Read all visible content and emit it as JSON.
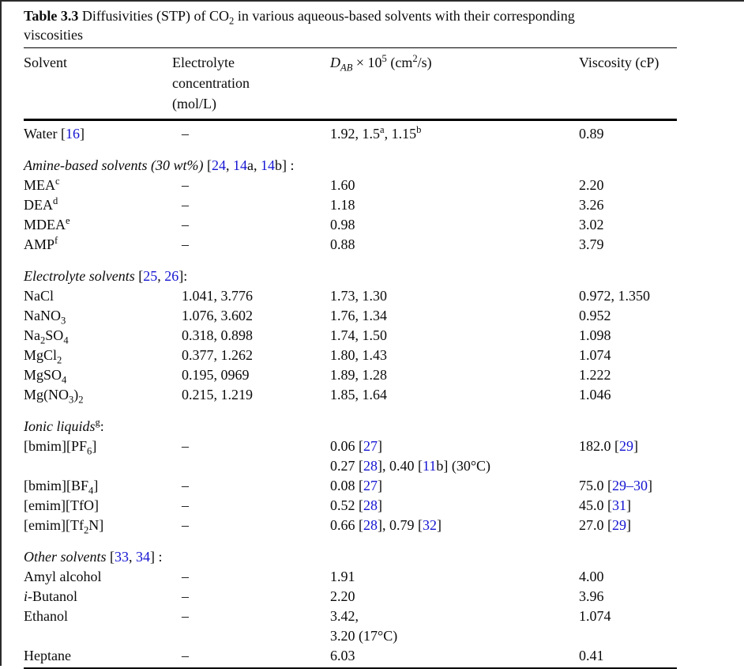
{
  "colors": {
    "link_blue": "#1414d2",
    "text": "#0b0b0b",
    "rule": "#000000",
    "frame": "#2b2b2b"
  },
  "table": {
    "title_segments": [
      {
        "b": "Table 3.3"
      },
      {
        "t": "  Diffusivities (STP) of CO"
      },
      {
        "sub": "2"
      },
      {
        "t": " in various aqueous-based solvents with their corresponding"
      },
      {
        "br": true
      },
      {
        "t": "viscosities"
      }
    ],
    "columns": [
      {
        "name": "solvent",
        "segments": [
          {
            "t": "Solvent"
          }
        ]
      },
      {
        "name": "electrolyte-concentration",
        "segments": [
          {
            "t": "Electrolyte"
          },
          {
            "br": true
          },
          {
            "t": "concentration"
          },
          {
            "br": true
          },
          {
            "t": "(mol/L)"
          }
        ]
      },
      {
        "name": "diffusivity",
        "segments": [
          {
            "i": "D"
          },
          {
            "isub": "AB"
          },
          {
            "t": " × 10"
          },
          {
            "sup": "5"
          },
          {
            "t": " (cm"
          },
          {
            "sup": "2"
          },
          {
            "t": "/s)"
          }
        ]
      },
      {
        "name": "viscosity",
        "segments": [
          {
            "t": "Viscosity (cP)"
          }
        ]
      }
    ],
    "sections": [
      {
        "rows": [
          {
            "cells": [
              [
                {
                  "t": "Water ["
                },
                {
                  "ref": "16"
                },
                {
                  "t": "]"
                }
              ],
              [
                {
                  "t": "–"
                }
              ],
              [
                {
                  "t": "1.92, 1.5"
                },
                {
                  "sup": "a"
                },
                {
                  "t": ", 1.15"
                },
                {
                  "sup": "b"
                }
              ],
              [
                {
                  "t": "0.89"
                }
              ]
            ]
          }
        ]
      },
      {
        "heading": [
          {
            "i": "Amine-based solvents (30 wt%) "
          },
          {
            "t": "["
          },
          {
            "ref": "24"
          },
          {
            "t": ", "
          },
          {
            "ref": "14"
          },
          {
            "t": "a, "
          },
          {
            "ref": "14"
          },
          {
            "t": "b] :"
          }
        ],
        "rows": [
          {
            "cells": [
              [
                {
                  "t": "MEA"
                },
                {
                  "sup": "c"
                }
              ],
              [
                {
                  "t": "–"
                }
              ],
              [
                {
                  "t": "1.60"
                }
              ],
              [
                {
                  "t": "2.20"
                }
              ]
            ]
          },
          {
            "cells": [
              [
                {
                  "t": "DEA"
                },
                {
                  "sup": "d"
                }
              ],
              [
                {
                  "t": "–"
                }
              ],
              [
                {
                  "t": "1.18"
                }
              ],
              [
                {
                  "t": "3.26"
                }
              ]
            ]
          },
          {
            "cells": [
              [
                {
                  "t": "MDEA"
                },
                {
                  "sup": "e"
                }
              ],
              [
                {
                  "t": "–"
                }
              ],
              [
                {
                  "t": "0.98"
                }
              ],
              [
                {
                  "t": "3.02"
                }
              ]
            ]
          },
          {
            "cells": [
              [
                {
                  "t": "AMP"
                },
                {
                  "sup": "f"
                }
              ],
              [
                {
                  "t": "–"
                }
              ],
              [
                {
                  "t": "0.88"
                }
              ],
              [
                {
                  "t": "3.79"
                }
              ]
            ]
          }
        ]
      },
      {
        "heading": [
          {
            "i": "Electrolyte solvents "
          },
          {
            "t": "["
          },
          {
            "ref": "25"
          },
          {
            "t": ", "
          },
          {
            "ref": "26"
          },
          {
            "t": "]:"
          }
        ],
        "rows": [
          {
            "cells": [
              [
                {
                  "t": "NaCl"
                }
              ],
              [
                {
                  "t": "1.041, 3.776"
                }
              ],
              [
                {
                  "t": "1.73, 1.30"
                }
              ],
              [
                {
                  "t": "0.972, 1.350"
                }
              ]
            ]
          },
          {
            "cells": [
              [
                {
                  "t": "NaNO"
                },
                {
                  "sub": "3"
                }
              ],
              [
                {
                  "t": "1.076, 3.602"
                }
              ],
              [
                {
                  "t": "1.76, 1.34"
                }
              ],
              [
                {
                  "t": "0.952"
                }
              ]
            ]
          },
          {
            "cells": [
              [
                {
                  "t": "Na"
                },
                {
                  "sub": "2"
                },
                {
                  "t": "SO"
                },
                {
                  "sub": "4"
                }
              ],
              [
                {
                  "t": "0.318, 0.898"
                }
              ],
              [
                {
                  "t": "1.74, 1.50"
                }
              ],
              [
                {
                  "t": "1.098"
                }
              ]
            ]
          },
          {
            "cells": [
              [
                {
                  "t": "MgCl"
                },
                {
                  "sub": "2"
                }
              ],
              [
                {
                  "t": "0.377, 1.262"
                }
              ],
              [
                {
                  "t": "1.80, 1.43"
                }
              ],
              [
                {
                  "t": "1.074"
                }
              ]
            ]
          },
          {
            "cells": [
              [
                {
                  "t": "MgSO"
                },
                {
                  "sub": "4"
                }
              ],
              [
                {
                  "t": "0.195, 0969"
                }
              ],
              [
                {
                  "t": "1.89, 1.28"
                }
              ],
              [
                {
                  "t": "1.222"
                }
              ]
            ]
          },
          {
            "cells": [
              [
                {
                  "t": "Mg(NO"
                },
                {
                  "sub": "3"
                },
                {
                  "t": ")"
                },
                {
                  "sub": "2"
                }
              ],
              [
                {
                  "t": "0.215, 1.219"
                }
              ],
              [
                {
                  "t": "1.85, 1.64"
                }
              ],
              [
                {
                  "t": "1.046"
                }
              ]
            ]
          }
        ]
      },
      {
        "heading": [
          {
            "i": "Ionic liquids"
          },
          {
            "sup": "g"
          },
          {
            "t": ":"
          }
        ],
        "rows": [
          {
            "cells": [
              [
                {
                  "t": "[bmim][PF"
                },
                {
                  "sub": "6"
                },
                {
                  "t": "]"
                }
              ],
              [
                {
                  "t": "–"
                }
              ],
              [
                {
                  "t": "0.06 ["
                },
                {
                  "ref": "27"
                },
                {
                  "t": "]"
                },
                {
                  "br": true
                },
                {
                  "t": "0.27 ["
                },
                {
                  "ref": "28"
                },
                {
                  "t": "], 0.40 ["
                },
                {
                  "ref": "11"
                },
                {
                  "t": "b] (30°C)"
                }
              ],
              [
                {
                  "t": "182.0 ["
                },
                {
                  "ref": "29"
                },
                {
                  "t": "]"
                }
              ]
            ]
          },
          {
            "cells": [
              [
                {
                  "t": "[bmim][BF"
                },
                {
                  "sub": "4"
                },
                {
                  "t": "]"
                }
              ],
              [
                {
                  "t": "–"
                }
              ],
              [
                {
                  "t": "0.08 ["
                },
                {
                  "ref": "27"
                },
                {
                  "t": "]"
                }
              ],
              [
                {
                  "t": "75.0 ["
                },
                {
                  "ref": "29–30"
                },
                {
                  "t": "]"
                }
              ]
            ]
          },
          {
            "cells": [
              [
                {
                  "t": "[emim][TfO]"
                }
              ],
              [
                {
                  "t": "–"
                }
              ],
              [
                {
                  "t": "0.52 ["
                },
                {
                  "ref": "28"
                },
                {
                  "t": "]"
                }
              ],
              [
                {
                  "t": "45.0 ["
                },
                {
                  "ref": "31"
                },
                {
                  "t": "]"
                }
              ]
            ]
          },
          {
            "cells": [
              [
                {
                  "t": "[emim][Tf"
                },
                {
                  "sub": "2"
                },
                {
                  "t": "N]"
                }
              ],
              [
                {
                  "t": "–"
                }
              ],
              [
                {
                  "t": "0.66 ["
                },
                {
                  "ref": "28"
                },
                {
                  "t": "], 0.79 ["
                },
                {
                  "ref": "32"
                },
                {
                  "t": "]"
                }
              ],
              [
                {
                  "t": "27.0 ["
                },
                {
                  "ref": "29"
                },
                {
                  "t": "]"
                }
              ]
            ]
          }
        ]
      },
      {
        "heading": [
          {
            "i": "Other solvents "
          },
          {
            "t": "["
          },
          {
            "ref": "33"
          },
          {
            "t": ", "
          },
          {
            "ref": "34"
          },
          {
            "t": "] :"
          }
        ],
        "rows": [
          {
            "cells": [
              [
                {
                  "t": "Amyl alcohol"
                }
              ],
              [
                {
                  "t": "–"
                }
              ],
              [
                {
                  "t": "1.91"
                }
              ],
              [
                {
                  "t": "4.00"
                }
              ]
            ]
          },
          {
            "cells": [
              [
                {
                  "i": "i"
                },
                {
                  "t": "-Butanol"
                }
              ],
              [
                {
                  "t": "–"
                }
              ],
              [
                {
                  "t": "2.20"
                }
              ],
              [
                {
                  "t": "3.96"
                }
              ]
            ]
          },
          {
            "cells": [
              [
                {
                  "t": "Ethanol"
                }
              ],
              [
                {
                  "t": "–"
                }
              ],
              [
                {
                  "t": "3.42,"
                },
                {
                  "br": true
                },
                {
                  "t": "3.20 (17°C)"
                }
              ],
              [
                {
                  "t": "1.074"
                }
              ]
            ]
          },
          {
            "cells": [
              [
                {
                  "t": "Heptane"
                }
              ],
              [
                {
                  "t": "–"
                }
              ],
              [
                {
                  "t": "6.03"
                }
              ],
              [
                {
                  "t": "0.41"
                }
              ]
            ]
          }
        ]
      }
    ]
  }
}
